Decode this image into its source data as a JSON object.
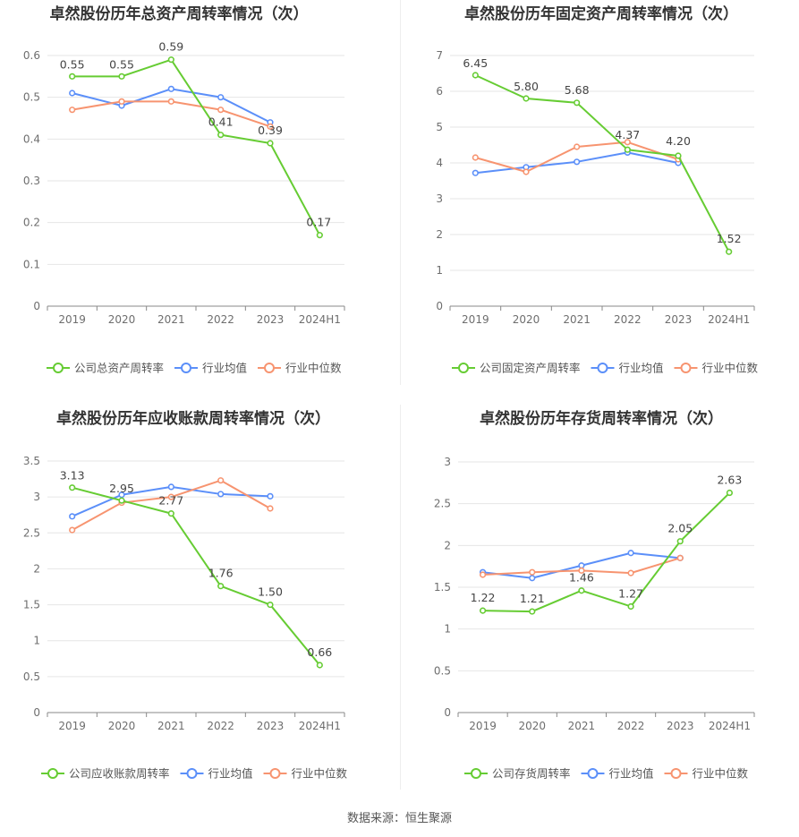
{
  "colors": {
    "company": "#66cc33",
    "average": "#5b8ff9",
    "median": "#f79470"
  },
  "legend_labels": [
    "行业均值",
    "行业中位数"
  ],
  "source_text": "数据来源：恒生聚源",
  "chart_data": [
    {
      "type": "line",
      "title": "卓然股份历年总资产周转率情况（次）",
      "categories": [
        "2019",
        "2020",
        "2021",
        "2022",
        "2023",
        "2024H1"
      ],
      "ylim": [
        0,
        0.6
      ],
      "yticks": [
        "0",
        "0.1",
        "0.2",
        "0.3",
        "0.4",
        "0.5",
        "0.6"
      ],
      "series": [
        {
          "name": "公司总资产周转率",
          "values": [
            0.55,
            0.55,
            0.59,
            0.41,
            0.39,
            0.17
          ],
          "labels": [
            "0.55",
            "0.55",
            "0.59",
            "0.41",
            "0.39",
            "0.17"
          ]
        },
        {
          "name": "行业均值",
          "values": [
            0.51,
            0.48,
            0.52,
            0.5,
            0.44,
            null
          ]
        },
        {
          "name": "行业中位数",
          "values": [
            0.47,
            0.49,
            0.49,
            0.47,
            0.43,
            null
          ]
        }
      ]
    },
    {
      "type": "line",
      "title": "卓然股份历年固定资产周转率情况（次）",
      "categories": [
        "2019",
        "2020",
        "2021",
        "2022",
        "2023",
        "2024H1"
      ],
      "ylim": [
        0,
        7
      ],
      "yticks": [
        "0",
        "1",
        "2",
        "3",
        "4",
        "5",
        "6",
        "7"
      ],
      "series": [
        {
          "name": "公司固定资产周转率",
          "values": [
            6.45,
            5.8,
            5.68,
            4.37,
            4.2,
            1.52
          ],
          "labels": [
            "6.45",
            "5.80",
            "5.68",
            "4.37",
            "4.20",
            "1.52"
          ]
        },
        {
          "name": "行业均值",
          "values": [
            3.72,
            3.88,
            4.03,
            4.29,
            4.0,
            null
          ]
        },
        {
          "name": "行业中位数",
          "values": [
            4.15,
            3.75,
            4.45,
            4.58,
            4.1,
            null
          ]
        }
      ]
    },
    {
      "type": "line",
      "title": "卓然股份历年应收账款周转率情况（次）",
      "categories": [
        "2019",
        "2020",
        "2021",
        "2022",
        "2023",
        "2024H1"
      ],
      "ylim": [
        0,
        3.5
      ],
      "yticks": [
        "0",
        "0.5",
        "1",
        "1.5",
        "2",
        "2.5",
        "3",
        "3.5"
      ],
      "series": [
        {
          "name": "公司应收账款周转率",
          "values": [
            3.13,
            2.95,
            2.77,
            1.76,
            1.5,
            0.66
          ],
          "labels": [
            "3.13",
            "2.95",
            "2.77",
            "1.76",
            "1.50",
            "0.66"
          ]
        },
        {
          "name": "行业均值",
          "values": [
            2.73,
            3.03,
            3.14,
            3.04,
            3.01,
            null
          ]
        },
        {
          "name": "行业中位数",
          "values": [
            2.54,
            2.92,
            3.0,
            3.23,
            2.84,
            null
          ]
        }
      ]
    },
    {
      "type": "line",
      "title": "卓然股份历年存货周转率情况（次）",
      "categories": [
        "2019",
        "2020",
        "2021",
        "2022",
        "2023",
        "2024H1"
      ],
      "ylim": [
        0,
        3
      ],
      "yticks": [
        "0",
        "0.5",
        "1",
        "1.5",
        "2",
        "2.5",
        "3"
      ],
      "series": [
        {
          "name": "公司存货周转率",
          "values": [
            1.22,
            1.21,
            1.46,
            1.27,
            2.05,
            2.63
          ],
          "labels": [
            "1.22",
            "1.21",
            "1.46",
            "1.27",
            "2.05",
            "2.63"
          ]
        },
        {
          "name": "行业均值",
          "values": [
            1.68,
            1.61,
            1.76,
            1.91,
            1.85,
            null
          ]
        },
        {
          "name": "行业中位数",
          "values": [
            1.65,
            1.68,
            1.7,
            1.67,
            1.85,
            null
          ]
        }
      ]
    }
  ]
}
